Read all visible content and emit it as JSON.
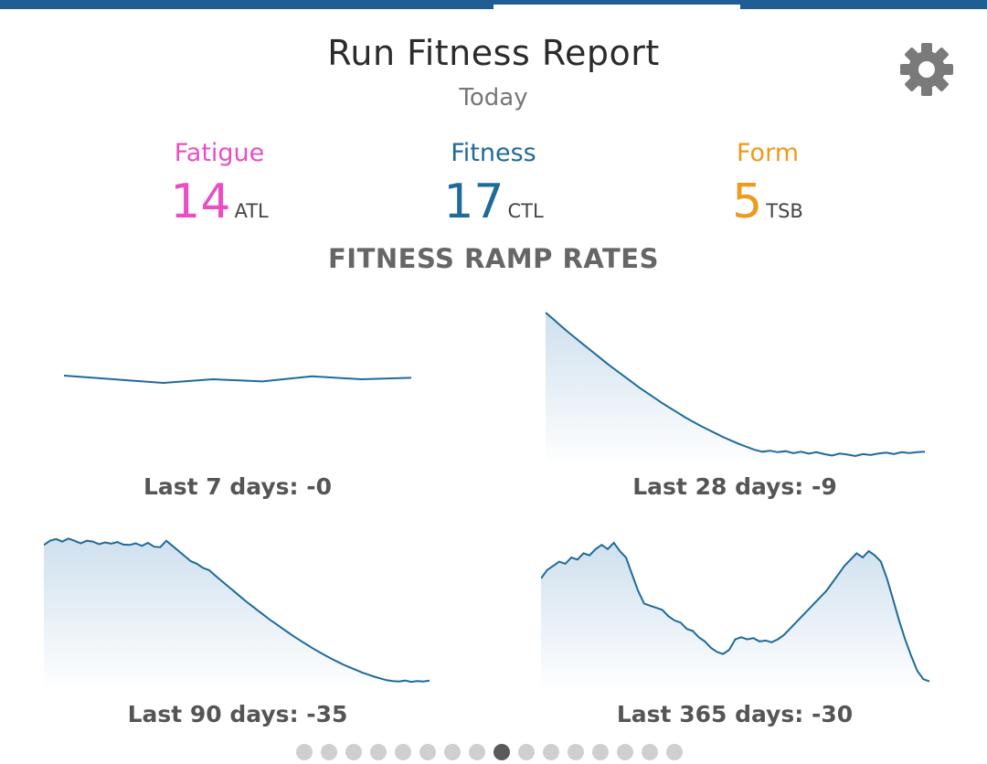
{
  "header": {
    "title": "Run Fitness Report",
    "subtitle": "Today"
  },
  "settings": {
    "icon": "gear-icon"
  },
  "metrics": [
    {
      "label": "Fatigue",
      "value": "14",
      "unit": "ATL",
      "color": "#e94fc3"
    },
    {
      "label": "Fitness",
      "value": "17",
      "unit": "CTL",
      "color": "#1f6a9a"
    },
    {
      "label": "Form",
      "value": "5",
      "unit": "TSB",
      "color": "#ef9a1d"
    }
  ],
  "section_title": "FITNESS RAMP RATES",
  "charts": [
    {
      "caption": "Last 7 days: -0"
    },
    {
      "caption": "Last 28 days: -9"
    },
    {
      "caption": "Last 90 days: -35"
    },
    {
      "caption": "Last 365 days: -30"
    }
  ],
  "chart_data": [
    {
      "type": "line",
      "title": "",
      "values": [
        0.05,
        0.0,
        -0.05,
        0.0,
        -0.03,
        0.04,
        0.0,
        0.02
      ],
      "ylim": [
        -1,
        1
      ]
    },
    {
      "type": "area",
      "title": "",
      "values": [
        32,
        30.6,
        29.2,
        27.8,
        26.5,
        25.2,
        23.9,
        22.6,
        21.3,
        20.1,
        18.9,
        17.7,
        16.5,
        15.4,
        14.3,
        13.2,
        12.2,
        11.2,
        10.2,
        9.3,
        8.4,
        7.6,
        6.8,
        6.0,
        5.3,
        4.6,
        4.0,
        3.4,
        3.0,
        3.2,
        2.9,
        3.1,
        2.7,
        3.0,
        2.6,
        2.9,
        2.5,
        2.2,
        2.6,
        2.4,
        2.1,
        2.5,
        2.3,
        2.6,
        2.8,
        2.5,
        2.9,
        2.7,
        2.9,
        3.0
      ],
      "ylim": [
        0,
        32
      ]
    },
    {
      "type": "area",
      "title": "",
      "values": [
        34,
        35,
        35.4,
        34.8,
        35.5,
        35,
        34.4,
        35,
        34.8,
        34.2,
        34.6,
        34.3,
        34.7,
        34.1,
        34.0,
        34.4,
        33.8,
        34.5,
        33.6,
        33.5,
        35,
        33.8,
        32.6,
        31.4,
        30.2,
        29.6,
        28.6,
        28.1,
        26.8,
        25.6,
        24.4,
        23.2,
        22.0,
        20.8,
        19.7,
        18.6,
        17.5,
        16.4,
        15.4,
        14.4,
        13.4,
        12.4,
        11.5,
        10.6,
        9.7,
        8.9,
        8.1,
        7.3,
        6.6,
        5.9,
        5.3,
        4.7,
        4.1,
        3.6,
        3.1,
        2.7,
        2.3,
        2.1,
        2.0,
        2.2,
        1.9,
        2.1,
        2.0,
        2.2
      ],
      "ylim": [
        0,
        36
      ]
    },
    {
      "type": "area",
      "title": "",
      "values": [
        27,
        29,
        30,
        31,
        30.5,
        32,
        31.5,
        33,
        32.5,
        34,
        35,
        34,
        35.5,
        33.5,
        32,
        28,
        24,
        21,
        20.5,
        20,
        19.5,
        18,
        17,
        16.5,
        15,
        14.5,
        13,
        12,
        10.5,
        9.5,
        9,
        10,
        12.5,
        13,
        12.5,
        12.8,
        12,
        12.2,
        11.8,
        12.5,
        13.5,
        15,
        16.5,
        18,
        19.5,
        21,
        22.5,
        24,
        26,
        28,
        30,
        31.5,
        33,
        32,
        33.5,
        32.5,
        31,
        27,
        22,
        17,
        12.5,
        8.5,
        5,
        3,
        2.5
      ],
      "ylim": [
        0,
        37
      ]
    }
  ],
  "pager": {
    "count": 16,
    "active": 8
  }
}
